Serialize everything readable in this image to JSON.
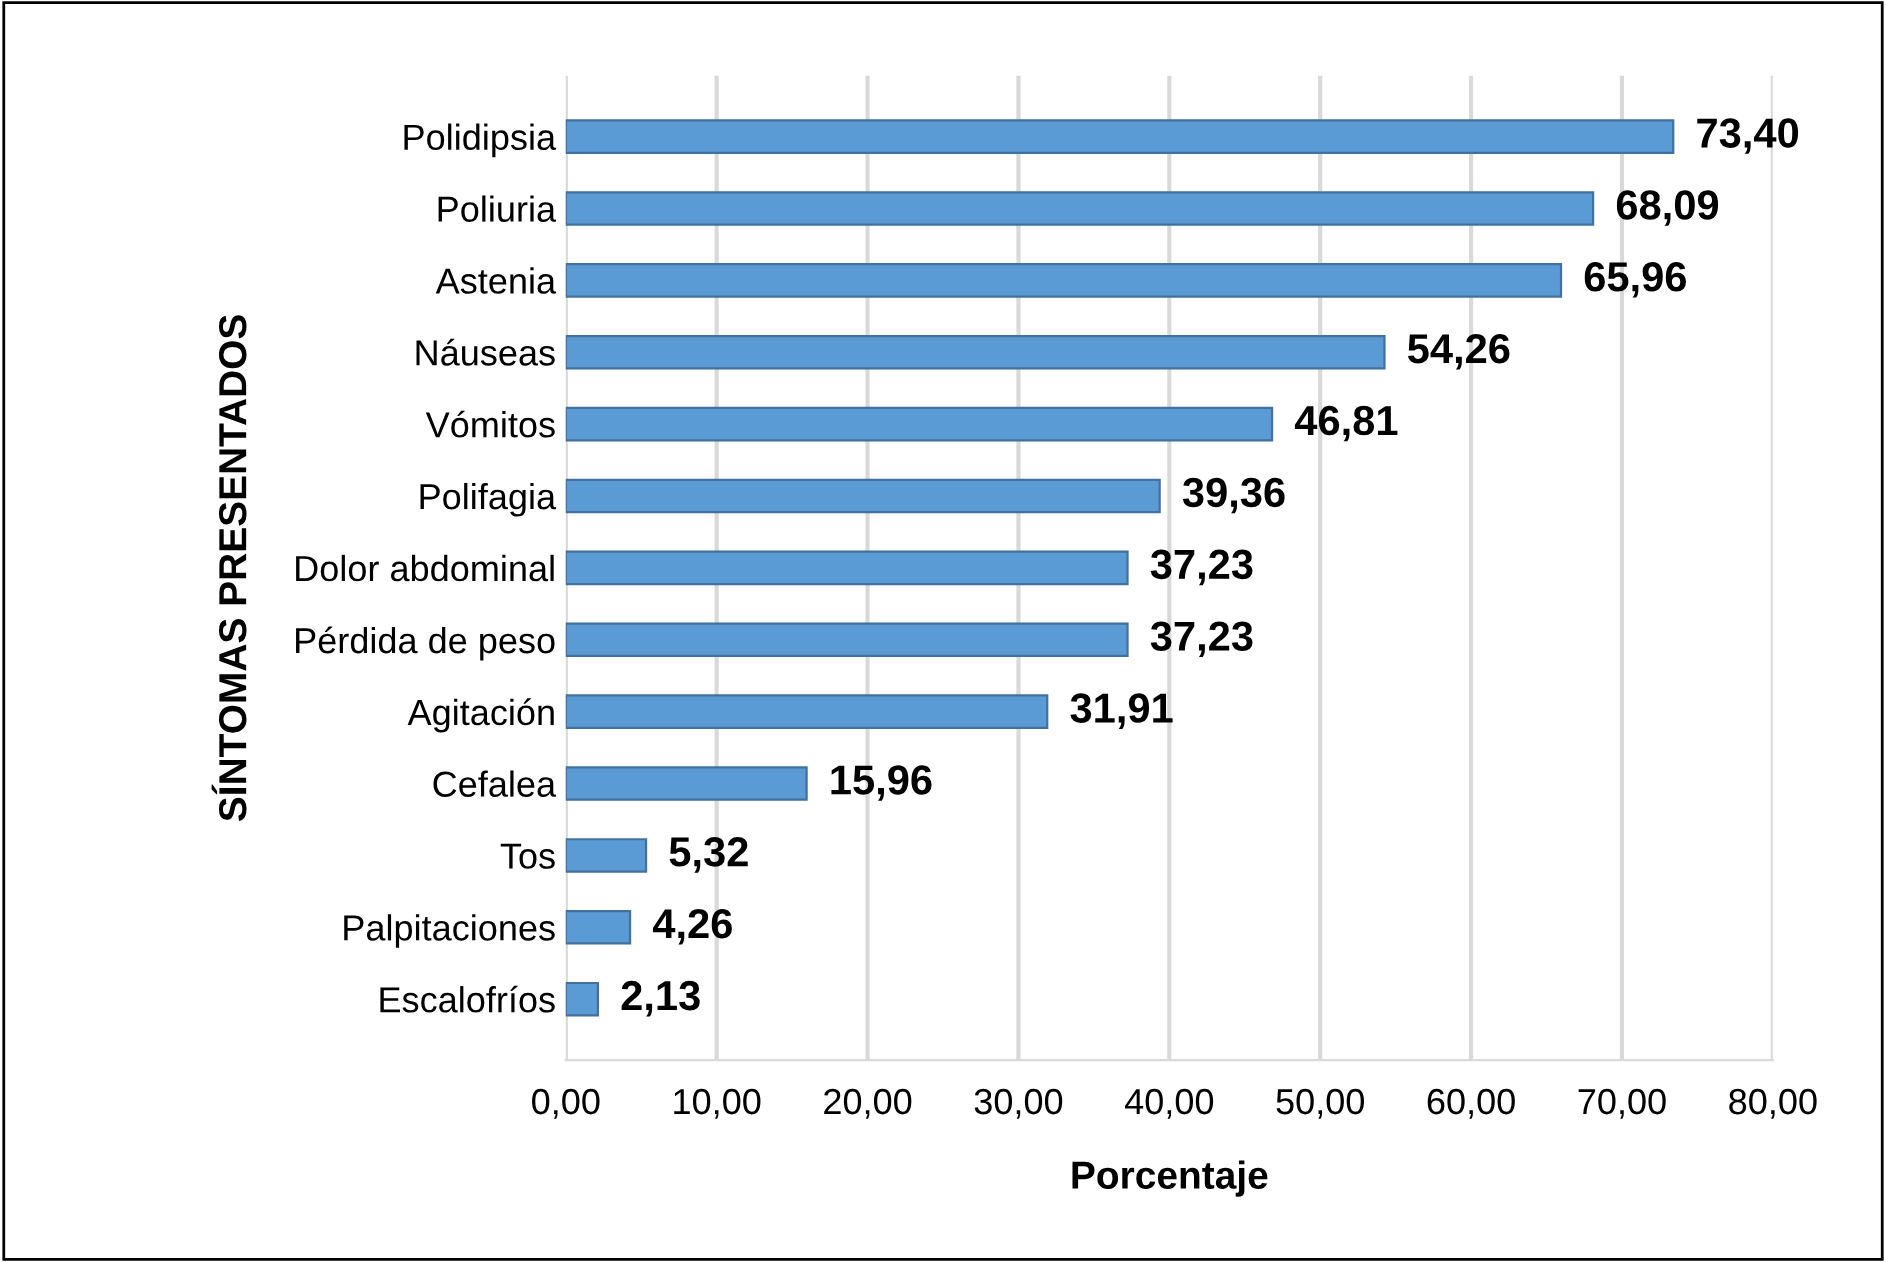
{
  "chart_data": {
    "type": "bar",
    "orientation": "horizontal",
    "xlabel": "Porcentaje",
    "ylabel": "SÍNTOMAS PRESENTADOS",
    "categories": [
      "Polidipsia",
      "Poliuria",
      "Astenia",
      "Náuseas",
      "Vómitos",
      "Polifagia",
      "Dolor abdominal",
      "Pérdida de peso",
      "Agitación",
      "Cefalea",
      "Tos",
      "Palpitaciones",
      "Escalofríos"
    ],
    "values": [
      73.4,
      68.09,
      65.96,
      54.26,
      46.81,
      39.36,
      37.23,
      37.23,
      31.91,
      15.96,
      5.32,
      4.26,
      2.13
    ],
    "value_labels": [
      "73,40",
      "68,09",
      "65,96",
      "54,26",
      "46,81",
      "39,36",
      "37,23",
      "37,23",
      "31,91",
      "15,96",
      "5,32",
      "4,26",
      "2,13"
    ],
    "color": "#5b9bd5",
    "xlim": [
      0,
      80
    ],
    "xticks": [
      {
        "value": 0,
        "label": "0,00"
      },
      {
        "value": 10,
        "label": "10,00"
      },
      {
        "value": 20,
        "label": "20,00"
      },
      {
        "value": 30,
        "label": "30,00"
      },
      {
        "value": 40,
        "label": "40,00"
      },
      {
        "value": 50,
        "label": "50,00"
      },
      {
        "value": 60,
        "label": "60,00"
      },
      {
        "value": 70,
        "label": "70,00"
      },
      {
        "value": 80,
        "label": "80,00"
      }
    ],
    "grid": "x"
  }
}
